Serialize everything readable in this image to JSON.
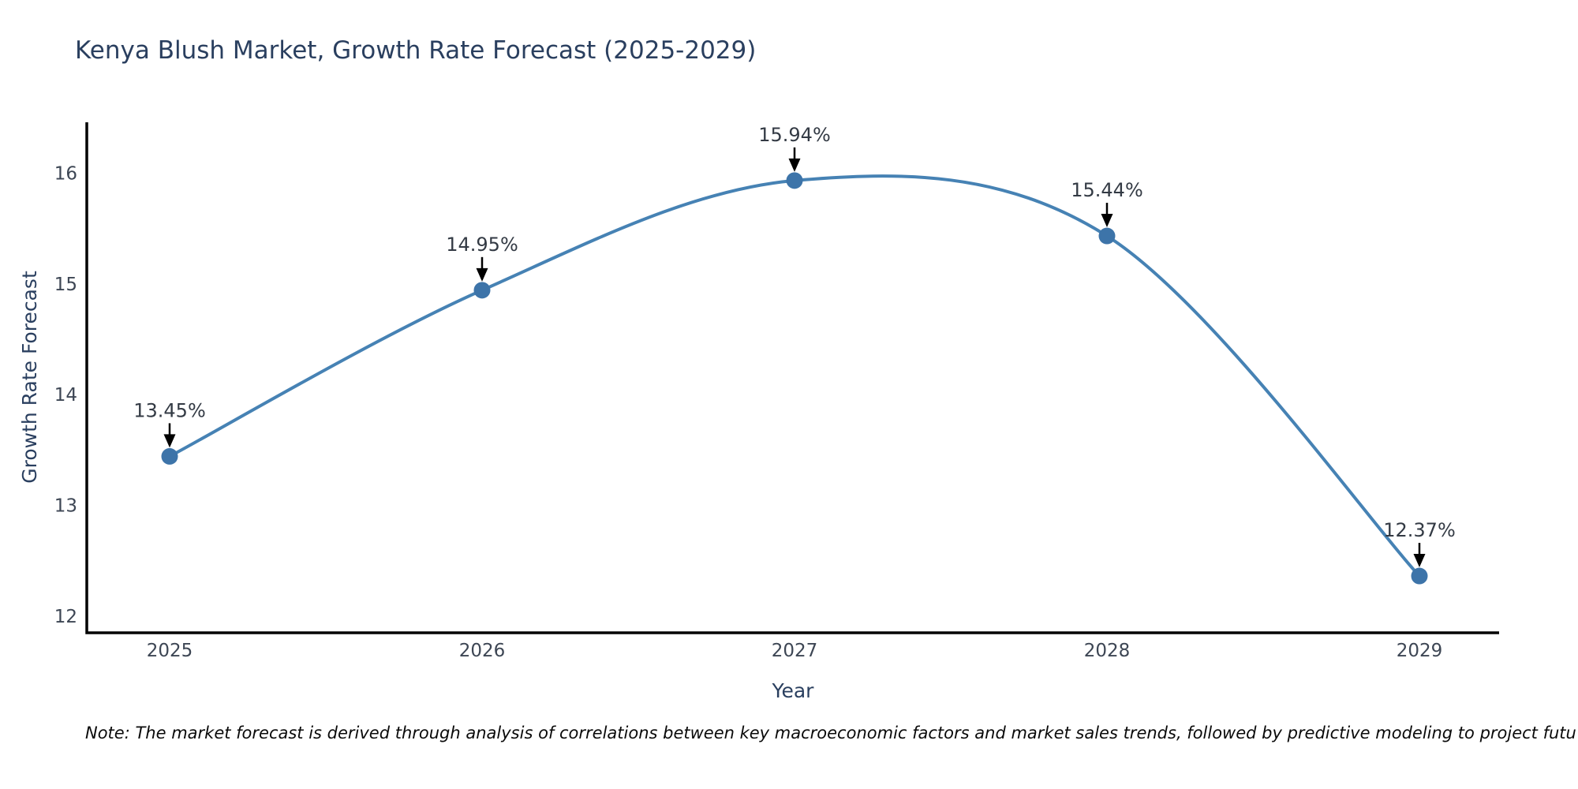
{
  "chart_data": {
    "type": "line",
    "title": "Kenya Blush Market, Growth Rate Forecast (2025-2029)",
    "xlabel": "Year",
    "ylabel": "Growth Rate Forecast",
    "x": [
      2025,
      2026,
      2027,
      2028,
      2029
    ],
    "series": [
      {
        "name": "Growth Rate Forecast",
        "values": [
          13.45,
          14.95,
          15.94,
          15.44,
          12.37
        ],
        "point_labels": [
          "13.45%",
          "14.95%",
          "15.94%",
          "15.44%",
          "12.37%"
        ]
      }
    ],
    "curve": "spline",
    "markers": true,
    "grid": false,
    "legend": "none",
    "xticks": [
      "2025",
      "2026",
      "2027",
      "2028",
      "2029"
    ],
    "yticks": [
      12,
      13,
      14,
      15,
      16
    ],
    "xlim": [
      2024.73,
      2029.26
    ],
    "ylim": [
      11.86,
      16.47
    ],
    "line_color": "#4682b4",
    "marker_color": "#3d74a9",
    "arrow_color": "#000000"
  },
  "footnote": "Note: The market forecast is derived through analysis of correlations between key macroeconomic factors and market sales trends, followed by predictive modeling to project future sales",
  "colors": {
    "background": "#ffffff",
    "title": "#2a3f5f",
    "axis_line": "#000000",
    "tick_label": "#3d4654",
    "axis_title": "#2a3f5f",
    "annotation_text": "#333a44"
  }
}
